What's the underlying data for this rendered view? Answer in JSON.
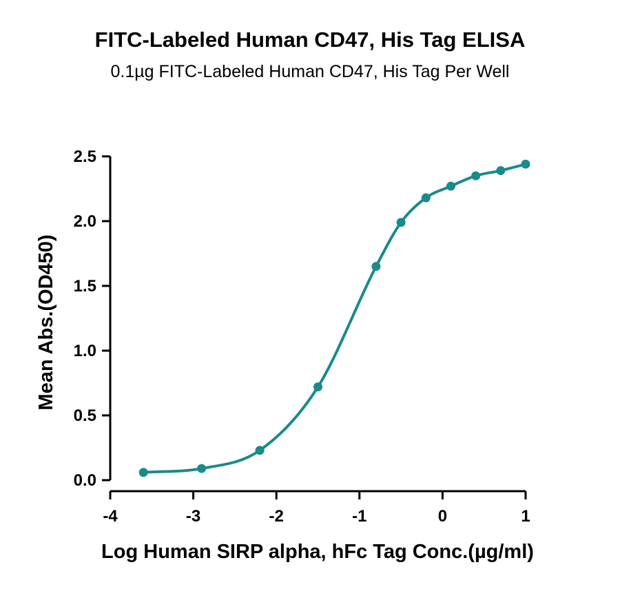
{
  "chart_data": {
    "type": "scatter",
    "title": "FITC-Labeled Human CD47, His Tag ELISA",
    "subtitle": "0.1µg FITC-Labeled Human CD47, His Tag Per Well",
    "xlabel": "Log Human SIRP alpha, hFc Tag Conc.(µg/ml)",
    "ylabel": "Mean Abs.(OD450)",
    "xlim": [
      -4,
      1
    ],
    "ylim": [
      0,
      2.5
    ],
    "xticks": [
      -4,
      -3,
      -2,
      -1,
      0,
      1
    ],
    "yticks": [
      0.0,
      0.5,
      1.0,
      1.5,
      2.0,
      2.5
    ],
    "xtick_labels": [
      "-4",
      "-3",
      "-2",
      "-1",
      "0",
      "1"
    ],
    "ytick_labels": [
      "0.0",
      "0.5",
      "1.0",
      "1.5",
      "2.0",
      "2.5"
    ],
    "series": [
      {
        "x": [
          -3.6,
          -2.9,
          -2.2,
          -1.5,
          -0.8,
          -0.5,
          -0.2,
          0.1,
          0.4,
          0.7,
          1.0
        ],
        "y": [
          0.06,
          0.09,
          0.23,
          0.72,
          1.65,
          1.99,
          2.18,
          2.27,
          2.35,
          2.39,
          2.44
        ]
      }
    ],
    "fit_curve": "sigmoidal",
    "color": "#1a8a8a",
    "grid": false,
    "legend": "none"
  }
}
